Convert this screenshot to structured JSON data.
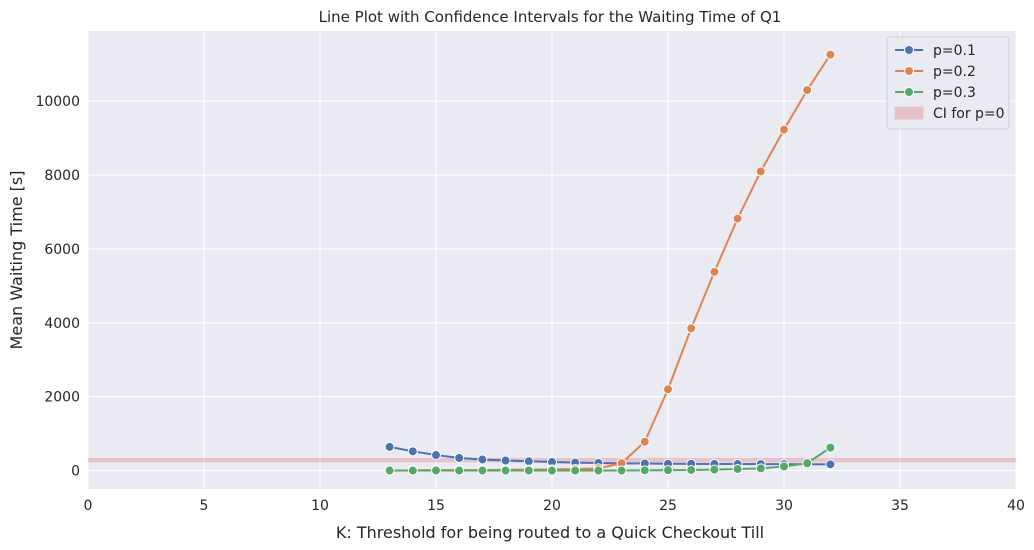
{
  "chart_data": {
    "type": "line",
    "title": "Line Plot with Confidence Intervals for the Waiting Time of Q1",
    "xlabel": "K: Threshold for being routed to a Quick Checkout Till",
    "ylabel": "Mean Waiting Time [s]",
    "xlim": [
      0,
      40
    ],
    "ylim": [
      -500,
      11900
    ],
    "xticks": [
      0,
      5,
      10,
      15,
      20,
      25,
      30,
      35,
      40
    ],
    "yticks": [
      0,
      2000,
      4000,
      6000,
      8000,
      10000
    ],
    "grid": true,
    "legend_position": "top-right",
    "x": [
      13,
      14,
      15,
      16,
      17,
      18,
      19,
      20,
      21,
      22,
      23,
      24,
      25,
      26,
      27,
      28,
      29,
      30,
      31,
      32
    ],
    "series": [
      {
        "name": "p=0.1",
        "color": "#4c72b0",
        "values": [
          640,
          520,
          420,
          340,
          300,
          270,
          250,
          230,
          215,
          205,
          195,
          190,
          185,
          180,
          178,
          176,
          174,
          172,
          170,
          168
        ]
      },
      {
        "name": "p=0.2",
        "color": "#dd8452",
        "values": [
          0,
          5,
          10,
          10,
          15,
          20,
          25,
          30,
          40,
          60,
          200,
          780,
          2200,
          3850,
          5380,
          6820,
          8100,
          9230,
          10300,
          11260
        ]
      },
      {
        "name": "p=0.3",
        "color": "#55a868",
        "values": [
          0,
          0,
          0,
          0,
          0,
          0,
          0,
          0,
          0,
          0,
          0,
          5,
          10,
          15,
          25,
          40,
          60,
          110,
          200,
          620
        ]
      }
    ],
    "ci_band": {
      "name": "CI for p=0",
      "color": "#e6a0a8",
      "lower": 220,
      "upper": 340
    }
  }
}
